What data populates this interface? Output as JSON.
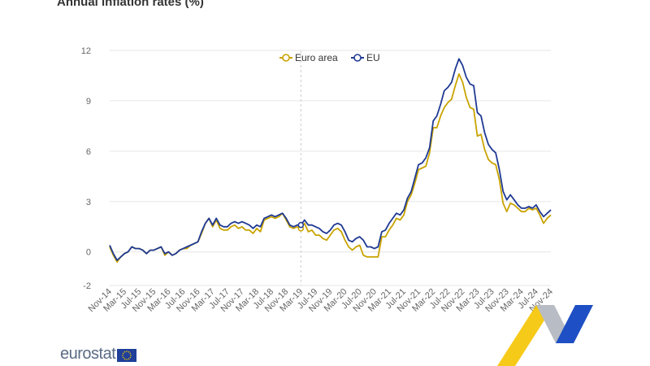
{
  "title": "Annual inflation rates (%)",
  "logo_text": "eurostat",
  "colors": {
    "euro_area": "#c9a300",
    "eu": "#1f3a93",
    "grid": "#e6e6e6"
  },
  "chart_data": {
    "type": "line",
    "title": "Annual inflation rates (%)",
    "xlabel": "",
    "ylabel": "",
    "ylim": [
      -2,
      12
    ],
    "yticks": [
      -2,
      0,
      3,
      6,
      9,
      12
    ],
    "legend_position": "top-center",
    "grid": true,
    "start": "Nov-14",
    "x_tick_labels": [
      "Nov-14",
      "Mar-15",
      "Jul-15",
      "Nov-15",
      "Mar-16",
      "Jul-16",
      "Nov-16",
      "Mar-17",
      "Jul-17",
      "Nov-17",
      "Mar-18",
      "Jul-18",
      "Nov-18",
      "Mar-19",
      "Jul-19",
      "Nov-19",
      "Mar-20",
      "Jul-20",
      "Nov-20",
      "Mar-21",
      "Jul-21",
      "Nov-21",
      "Mar-22",
      "Jul-22",
      "Nov-22",
      "Mar-23",
      "Jul-23",
      "Nov-23",
      "Mar-24",
      "Jul-24",
      "Nov-24"
    ],
    "marker_line_at": "Mar-19",
    "series": [
      {
        "name": "Euro area",
        "values": [
          0.3,
          -0.2,
          -0.6,
          -0.3,
          -0.1,
          0.0,
          0.3,
          0.2,
          0.2,
          0.1,
          -0.1,
          0.1,
          0.1,
          0.2,
          0.3,
          -0.2,
          0.0,
          -0.2,
          -0.1,
          0.1,
          0.2,
          0.2,
          0.4,
          0.5,
          0.6,
          1.1,
          1.7,
          2.0,
          1.5,
          1.9,
          1.4,
          1.3,
          1.3,
          1.5,
          1.6,
          1.4,
          1.5,
          1.3,
          1.3,
          1.1,
          1.4,
          1.2,
          1.9,
          2.0,
          2.1,
          2.0,
          2.1,
          2.3,
          1.9,
          1.5,
          1.4,
          1.5,
          1.4,
          1.7,
          1.2,
          1.3,
          1.0,
          1.0,
          0.8,
          0.7,
          1.0,
          1.3,
          1.4,
          1.2,
          0.7,
          0.3,
          0.1,
          0.3,
          0.4,
          -0.2,
          -0.3,
          -0.3,
          -0.3,
          -0.3,
          0.9,
          0.9,
          1.3,
          1.6,
          2.0,
          1.9,
          2.2,
          3.0,
          3.4,
          4.1,
          4.9,
          5.0,
          5.1,
          5.9,
          7.4,
          7.4,
          8.1,
          8.6,
          8.9,
          9.1,
          9.9,
          10.6,
          10.1,
          9.2,
          8.6,
          8.5,
          6.9,
          7.0,
          6.1,
          5.5,
          5.3,
          5.2,
          4.3,
          2.9,
          2.4,
          2.9,
          2.8,
          2.6,
          2.4,
          2.4,
          2.6,
          2.5,
          2.6,
          2.2,
          1.7,
          2.0,
          2.2
        ]
      },
      {
        "name": "EU",
        "values": [
          0.4,
          -0.1,
          -0.5,
          -0.3,
          -0.1,
          0.0,
          0.3,
          0.2,
          0.2,
          0.1,
          -0.1,
          0.1,
          0.1,
          0.2,
          0.3,
          -0.1,
          0.0,
          -0.2,
          -0.1,
          0.1,
          0.2,
          0.3,
          0.4,
          0.5,
          0.6,
          1.2,
          1.7,
          2.0,
          1.6,
          2.0,
          1.6,
          1.5,
          1.5,
          1.7,
          1.8,
          1.7,
          1.8,
          1.7,
          1.6,
          1.4,
          1.6,
          1.5,
          2.0,
          2.1,
          2.2,
          2.1,
          2.2,
          2.3,
          2.0,
          1.6,
          1.5,
          1.6,
          1.6,
          1.9,
          1.6,
          1.6,
          1.5,
          1.4,
          1.2,
          1.1,
          1.3,
          1.6,
          1.7,
          1.6,
          1.2,
          0.7,
          0.6,
          0.8,
          0.9,
          0.7,
          0.3,
          0.3,
          0.2,
          0.3,
          1.2,
          1.3,
          1.7,
          2.0,
          2.3,
          2.2,
          2.5,
          3.2,
          3.6,
          4.4,
          5.2,
          5.3,
          5.6,
          6.2,
          7.8,
          8.1,
          8.8,
          9.6,
          9.8,
          10.1,
          10.9,
          11.5,
          11.1,
          10.4,
          10.0,
          9.9,
          8.3,
          8.1,
          7.1,
          6.4,
          6.1,
          5.9,
          4.9,
          3.6,
          3.1,
          3.4,
          3.1,
          2.8,
          2.6,
          2.6,
          2.7,
          2.6,
          2.8,
          2.4,
          2.1,
          2.3,
          2.5
        ]
      }
    ]
  }
}
